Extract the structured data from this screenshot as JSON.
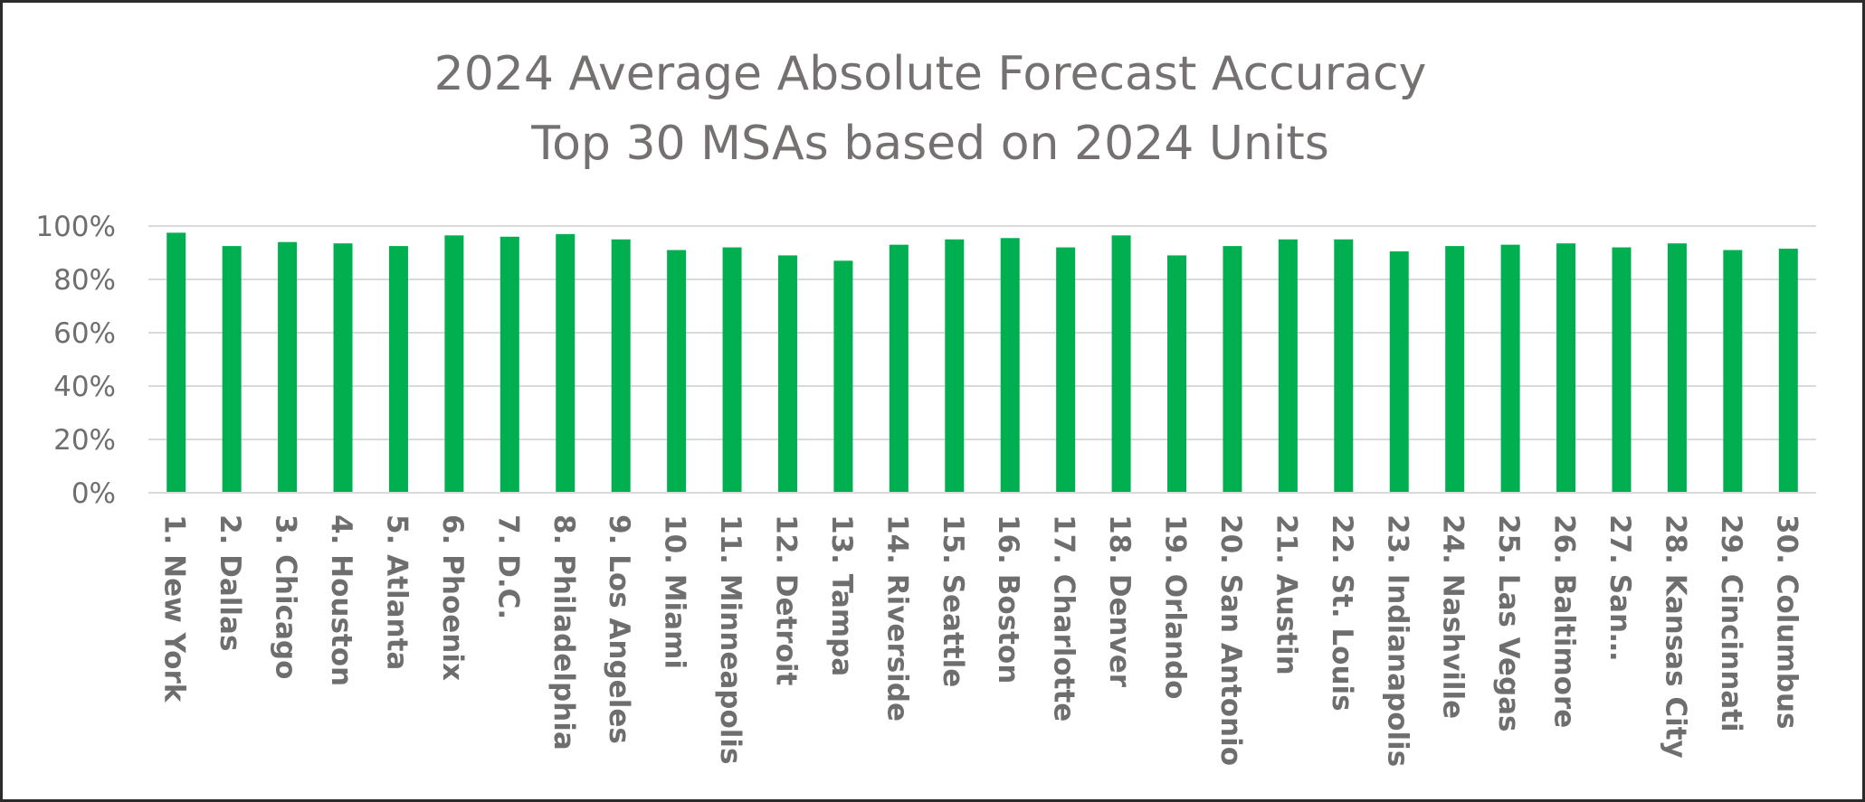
{
  "chart_data": {
    "type": "bar",
    "title": "2024 Average Absolute Forecast Accuracy",
    "subtitle": "Top 30 MSAs based on 2024 Units",
    "xlabel": "",
    "ylabel": "",
    "ylim": [
      0,
      100
    ],
    "yticks": [
      "0%",
      "20%",
      "40%",
      "60%",
      "80%",
      "100%"
    ],
    "grid": true,
    "legend": "none",
    "bar_color": "#00b050",
    "grid_color": "#d9d9d9",
    "categories": [
      "1. New York",
      "2. Dallas",
      "3. Chicago",
      "4. Houston",
      "5. Atlanta",
      "6. Phoenix",
      "7. D.C.",
      "8. Philadelphia",
      "9. Los Angeles",
      "10. Miami",
      "11. Minneapolis",
      "12. Detroit",
      "13. Tampa",
      "14. Riverside",
      "15. Seattle",
      "16. Boston",
      "17. Charlotte",
      "18. Denver",
      "19. Orlando",
      "20. San Antonio",
      "21. Austin",
      "22. St. Louis",
      "23. Indianapolis",
      "24. Nashville",
      "25. Las Vegas",
      "26. Baltimore",
      "27. San…",
      "28. Kansas City",
      "29. Cincinnati",
      "30. Columbus"
    ],
    "values": [
      97.5,
      92.5,
      94,
      93.5,
      92.5,
      96.5,
      96,
      97,
      95,
      91,
      92,
      89,
      87,
      93,
      95,
      95.5,
      92,
      96.5,
      89,
      92.5,
      95,
      95,
      90.5,
      92.5,
      93,
      93.5,
      92,
      93.5,
      91,
      91.5
    ]
  }
}
